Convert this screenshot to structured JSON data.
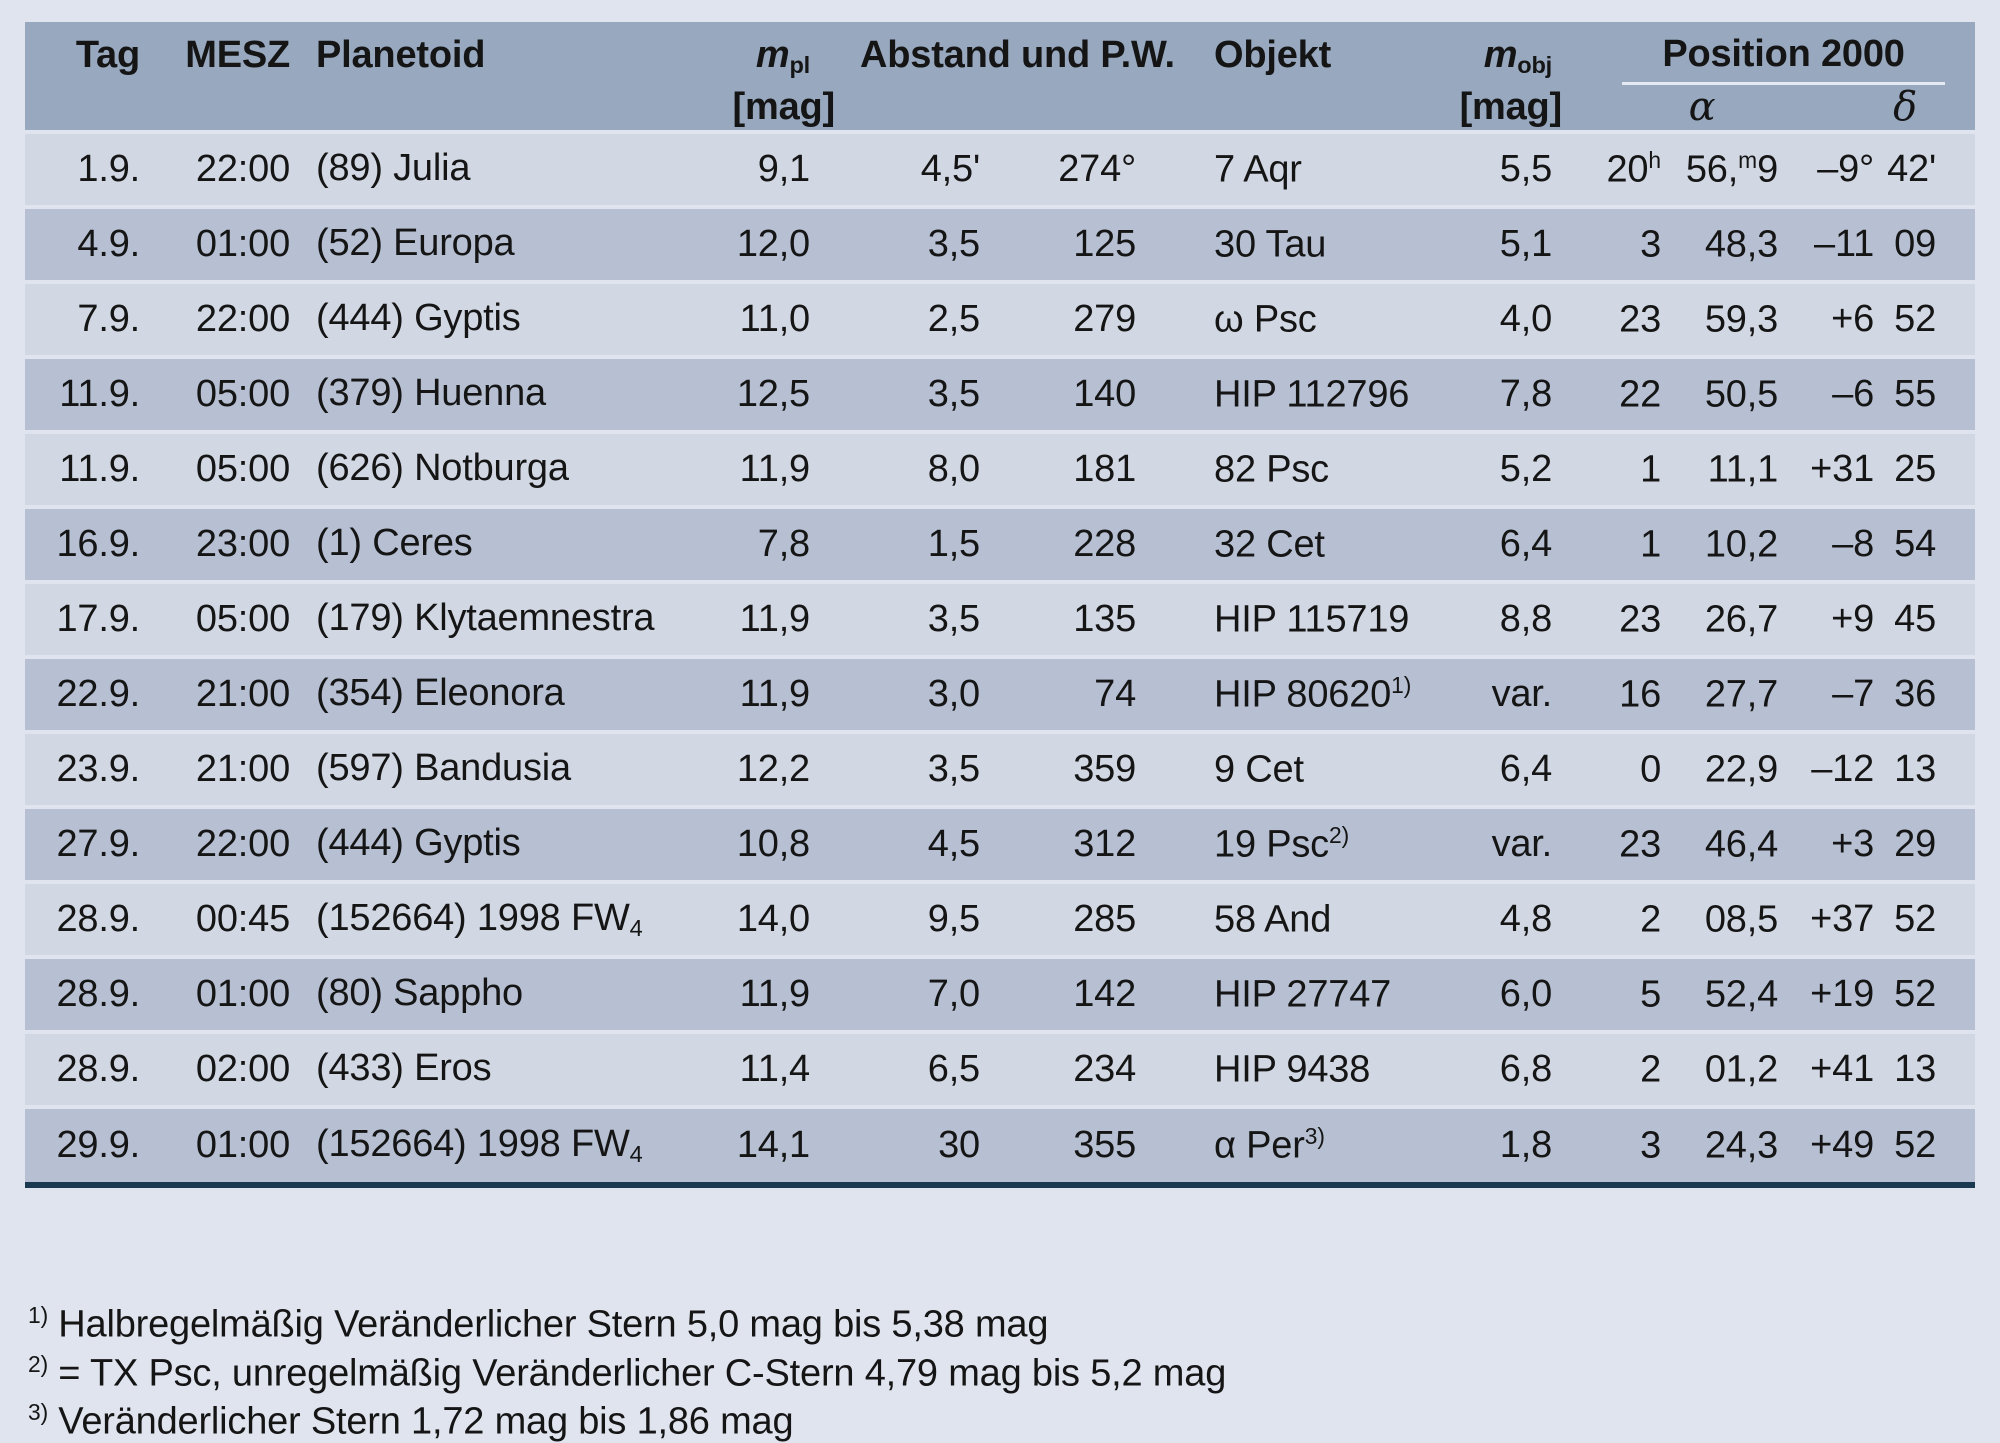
{
  "page": {
    "background": "#e0e4ef"
  },
  "table": {
    "colors": {
      "header_bg": "#97a8bf",
      "row_light": "#d2d8e3",
      "row_dark": "#b6c0d2",
      "bottom_rule": "#1b3a52"
    },
    "header": {
      "tag": "Tag",
      "mesz": "MESZ",
      "planetoid": "Planetoid",
      "mpl_symbol": "m",
      "mpl_sub": "pl",
      "mpl_unit": "[mag]",
      "abstand_pw": "Abstand und P.W.",
      "objekt": "Objekt",
      "mobj_symbol": "m",
      "mobj_sub": "obj",
      "mobj_unit": "[mag]",
      "position": "Position 2000",
      "alpha": "α",
      "delta": "δ"
    },
    "rows": [
      {
        "tag": "1.9.",
        "mesz": "22:00",
        "planetoid": "(89) Julia",
        "planetoid_sub": "",
        "mpl": "9,1",
        "abstand": "4,5'",
        "pw": "274°",
        "objekt": "7 Aqr",
        "objekt_sup": "",
        "mobj": "5,5",
        "ra_h": "20",
        "ra_h_sup": "h",
        "ra_m": "56,",
        "ra_m_sup": "m",
        "ra_m_rest": "9",
        "dec_d": "–9°",
        "dec_m": "42'"
      },
      {
        "tag": "4.9.",
        "mesz": "01:00",
        "planetoid": "(52) Europa",
        "planetoid_sub": "",
        "mpl": "12,0",
        "abstand": "3,5",
        "pw": "125",
        "objekt": "30 Tau",
        "objekt_sup": "",
        "mobj": "5,1",
        "ra_h": "3",
        "ra_h_sup": "",
        "ra_m": "48,3",
        "ra_m_sup": "",
        "ra_m_rest": "",
        "dec_d": "–11",
        "dec_m": "09"
      },
      {
        "tag": "7.9.",
        "mesz": "22:00",
        "planetoid": "(444) Gyptis",
        "planetoid_sub": "",
        "mpl": "11,0",
        "abstand": "2,5",
        "pw": "279",
        "objekt": "ω Psc",
        "objekt_sup": "",
        "mobj": "4,0",
        "ra_h": "23",
        "ra_h_sup": "",
        "ra_m": "59,3",
        "ra_m_sup": "",
        "ra_m_rest": "",
        "dec_d": "+6",
        "dec_m": "52"
      },
      {
        "tag": "11.9.",
        "mesz": "05:00",
        "planetoid": "(379) Huenna",
        "planetoid_sub": "",
        "mpl": "12,5",
        "abstand": "3,5",
        "pw": "140",
        "objekt": "HIP 112796",
        "objekt_sup": "",
        "mobj": "7,8",
        "ra_h": "22",
        "ra_h_sup": "",
        "ra_m": "50,5",
        "ra_m_sup": "",
        "ra_m_rest": "",
        "dec_d": "–6",
        "dec_m": "55"
      },
      {
        "tag": "11.9.",
        "mesz": "05:00",
        "planetoid": "(626) Notburga",
        "planetoid_sub": "",
        "mpl": "11,9",
        "abstand": "8,0",
        "pw": "181",
        "objekt": "82 Psc",
        "objekt_sup": "",
        "mobj": "5,2",
        "ra_h": "1",
        "ra_h_sup": "",
        "ra_m": "11,1",
        "ra_m_sup": "",
        "ra_m_rest": "",
        "dec_d": "+31",
        "dec_m": "25"
      },
      {
        "tag": "16.9.",
        "mesz": "23:00",
        "planetoid": "(1) Ceres",
        "planetoid_sub": "",
        "mpl": "7,8",
        "abstand": "1,5",
        "pw": "228",
        "objekt": "32 Cet",
        "objekt_sup": "",
        "mobj": "6,4",
        "ra_h": "1",
        "ra_h_sup": "",
        "ra_m": "10,2",
        "ra_m_sup": "",
        "ra_m_rest": "",
        "dec_d": "–8",
        "dec_m": "54"
      },
      {
        "tag": "17.9.",
        "mesz": "05:00",
        "planetoid": "(179) Klytaemnestra",
        "planetoid_sub": "",
        "mpl": "11,9",
        "abstand": "3,5",
        "pw": "135",
        "objekt": "HIP 115719",
        "objekt_sup": "",
        "mobj": "8,8",
        "ra_h": "23",
        "ra_h_sup": "",
        "ra_m": "26,7",
        "ra_m_sup": "",
        "ra_m_rest": "",
        "dec_d": "+9",
        "dec_m": "45"
      },
      {
        "tag": "22.9.",
        "mesz": "21:00",
        "planetoid": "(354) Eleonora",
        "planetoid_sub": "",
        "mpl": "11,9",
        "abstand": "3,0",
        "pw": "74",
        "objekt": "HIP 80620",
        "objekt_sup": "1)",
        "mobj": "var.",
        "ra_h": "16",
        "ra_h_sup": "",
        "ra_m": "27,7",
        "ra_m_sup": "",
        "ra_m_rest": "",
        "dec_d": "–7",
        "dec_m": "36"
      },
      {
        "tag": "23.9.",
        "mesz": "21:00",
        "planetoid": "(597) Bandusia",
        "planetoid_sub": "",
        "mpl": "12,2",
        "abstand": "3,5",
        "pw": "359",
        "objekt": "9 Cet",
        "objekt_sup": "",
        "mobj": "6,4",
        "ra_h": "0",
        "ra_h_sup": "",
        "ra_m": "22,9",
        "ra_m_sup": "",
        "ra_m_rest": "",
        "dec_d": "–12",
        "dec_m": "13"
      },
      {
        "tag": "27.9.",
        "mesz": "22:00",
        "planetoid": "(444) Gyptis",
        "planetoid_sub": "",
        "mpl": "10,8",
        "abstand": "4,5",
        "pw": "312",
        "objekt": "19 Psc",
        "objekt_sup": "2)",
        "mobj": "var.",
        "ra_h": "23",
        "ra_h_sup": "",
        "ra_m": "46,4",
        "ra_m_sup": "",
        "ra_m_rest": "",
        "dec_d": "+3",
        "dec_m": "29"
      },
      {
        "tag": "28.9.",
        "mesz": "00:45",
        "planetoid": "(152664) 1998 FW",
        "planetoid_sub": "4",
        "mpl": "14,0",
        "abstand": "9,5",
        "pw": "285",
        "objekt": "58 And",
        "objekt_sup": "",
        "mobj": "4,8",
        "ra_h": "2",
        "ra_h_sup": "",
        "ra_m": "08,5",
        "ra_m_sup": "",
        "ra_m_rest": "",
        "dec_d": "+37",
        "dec_m": "52"
      },
      {
        "tag": "28.9.",
        "mesz": "01:00",
        "planetoid": "(80) Sappho",
        "planetoid_sub": "",
        "mpl": "11,9",
        "abstand": "7,0",
        "pw": "142",
        "objekt": "HIP 27747",
        "objekt_sup": "",
        "mobj": "6,0",
        "ra_h": "5",
        "ra_h_sup": "",
        "ra_m": "52,4",
        "ra_m_sup": "",
        "ra_m_rest": "",
        "dec_d": "+19",
        "dec_m": "52"
      },
      {
        "tag": "28.9.",
        "mesz": "02:00",
        "planetoid": "(433) Eros",
        "planetoid_sub": "",
        "mpl": "11,4",
        "abstand": "6,5",
        "pw": "234",
        "objekt": "HIP 9438",
        "objekt_sup": "",
        "mobj": "6,8",
        "ra_h": "2",
        "ra_h_sup": "",
        "ra_m": "01,2",
        "ra_m_sup": "",
        "ra_m_rest": "",
        "dec_d": "+41",
        "dec_m": "13"
      },
      {
        "tag": "29.9.",
        "mesz": "01:00",
        "planetoid": "(152664) 1998 FW",
        "planetoid_sub": "4",
        "mpl": "14,1",
        "abstand": "30",
        "pw": "355",
        "objekt": "α Per",
        "objekt_sup": "3)",
        "mobj": "1,8",
        "ra_h": "3",
        "ra_h_sup": "",
        "ra_m": "24,3",
        "ra_m_sup": "",
        "ra_m_rest": "",
        "dec_d": "+49",
        "dec_m": "52"
      }
    ]
  },
  "footnotes": [
    {
      "sup": "1)",
      "text": "Halbregelmäßig Veränderlicher Stern 5,0 mag bis 5,38 mag"
    },
    {
      "sup": "2)",
      "text": "= TX Psc, unregelmäßig Veränderlicher C-Stern 4,79 mag bis 5,2 mag"
    },
    {
      "sup": "3)",
      "text": "Veränderlicher Stern 1,72 mag bis 1,86 mag"
    }
  ]
}
